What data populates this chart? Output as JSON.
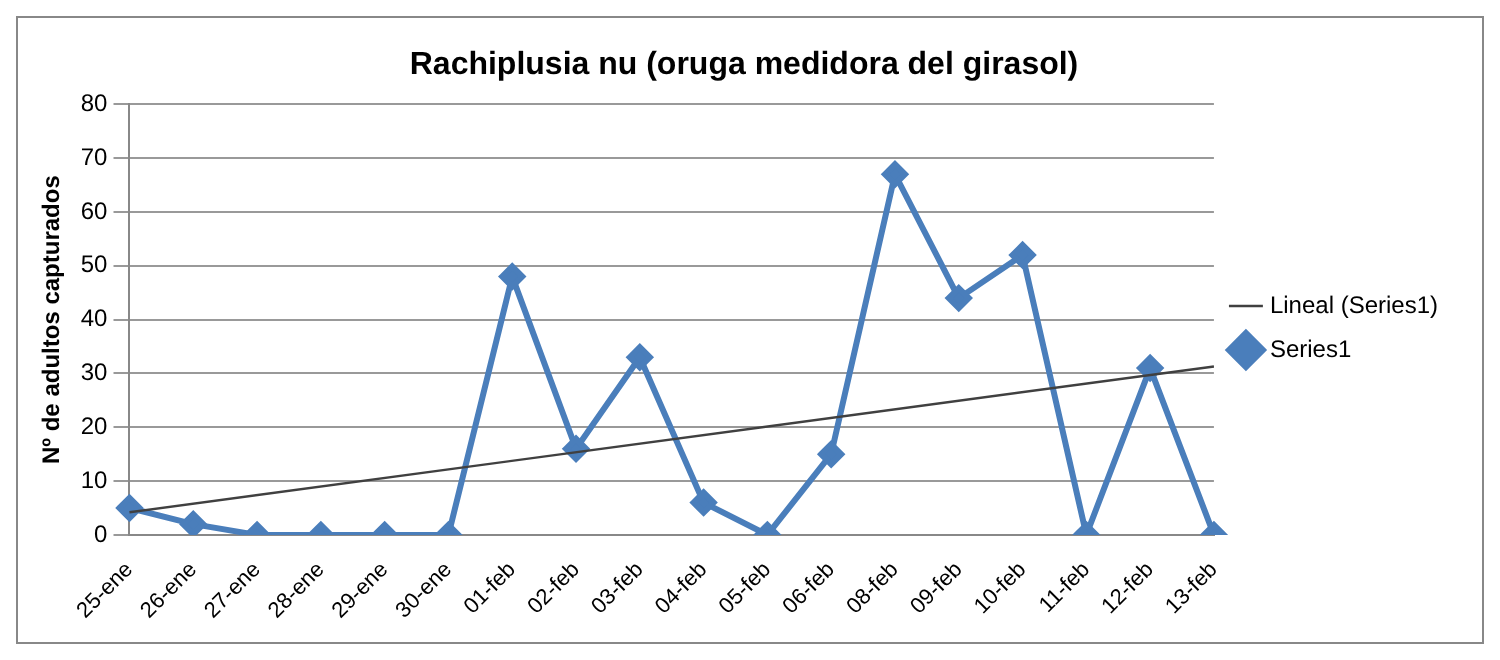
{
  "chart_data": {
    "type": "line",
    "title": "Rachiplusia nu (oruga medidora del girasol)",
    "ylabel": "Nº de adultos capturados",
    "categories": [
      "25-ene",
      "26-ene",
      "27-ene",
      "28-ene",
      "29-ene",
      "30-ene",
      "01-feb",
      "02-feb",
      "03-feb",
      "04-feb",
      "05-feb",
      "06-feb",
      "08-feb",
      "09-feb",
      "10-feb",
      "11-feb",
      "12-feb",
      "13-feb"
    ],
    "series": [
      {
        "name": "Series1",
        "color": "#4a7ebb",
        "marker": "diamond",
        "values": [
          5,
          2,
          0,
          0,
          0,
          0,
          48,
          16,
          33,
          6,
          0,
          15,
          67,
          44,
          52,
          0,
          31,
          0
        ]
      },
      {
        "name": "Lineal (Series1)",
        "type": "line",
        "color": "#404040",
        "marker": "none",
        "x": [
          "25-ene",
          "13-feb"
        ],
        "values": [
          4.2,
          31.3
        ]
      }
    ],
    "ylim": [
      0,
      80
    ],
    "yticks": [
      0,
      10,
      20,
      30,
      40,
      50,
      60,
      70,
      80
    ],
    "grid": "y",
    "legend": "right"
  }
}
